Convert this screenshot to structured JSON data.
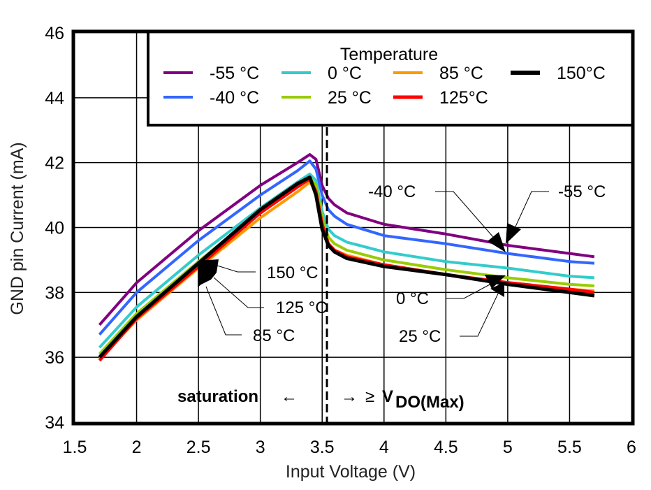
{
  "chart_data": {
    "type": "line",
    "title": "",
    "xlabel": "Input Voltage (V)",
    "ylabel": "GND pin Current (mA)",
    "xlim": [
      1.5,
      6
    ],
    "ylim": [
      34,
      46
    ],
    "xticks": [
      "1.5",
      "2",
      "2.5",
      "3",
      "3.5",
      "4",
      "4.5",
      "5",
      "5.5",
      "6"
    ],
    "yticks": [
      "34",
      "36",
      "38",
      "40",
      "42",
      "44",
      "46"
    ],
    "grid": true,
    "legend": {
      "title": "Temperature",
      "placement": "top-right",
      "entries": [
        "-55 °C",
        "0 °C",
        "85 °C",
        "150°C",
        "-40 °C",
        "25 °C",
        "125°C"
      ]
    },
    "x": [
      1.7,
      2.0,
      2.5,
      3.0,
      3.3,
      3.4,
      3.45,
      3.5,
      3.55,
      3.6,
      3.7,
      4.0,
      4.5,
      5.0,
      5.5,
      5.7
    ],
    "series": [
      {
        "name": "-55 °C",
        "color": "#800080",
        "values": [
          37.0,
          38.3,
          39.9,
          41.3,
          42.0,
          42.25,
          42.1,
          41.3,
          40.9,
          40.7,
          40.45,
          40.1,
          39.8,
          39.45,
          39.2,
          39.1
        ]
      },
      {
        "name": "-40 °C",
        "color": "#3366ff",
        "values": [
          36.7,
          38.0,
          39.6,
          41.0,
          41.75,
          42.05,
          41.8,
          41.0,
          40.55,
          40.35,
          40.1,
          39.75,
          39.5,
          39.2,
          38.95,
          38.9
        ]
      },
      {
        "name": "0 °C",
        "color": "#33cccc",
        "values": [
          36.3,
          37.55,
          39.15,
          40.6,
          41.4,
          41.65,
          41.45,
          40.5,
          39.95,
          39.75,
          39.55,
          39.25,
          38.95,
          38.75,
          38.5,
          38.45
        ]
      },
      {
        "name": "25 °C",
        "color": "#99cc00",
        "values": [
          36.1,
          37.35,
          38.95,
          40.5,
          41.3,
          41.55,
          41.3,
          40.3,
          39.7,
          39.5,
          39.3,
          39.0,
          38.7,
          38.45,
          38.25,
          38.2
        ]
      },
      {
        "name": "85 °C",
        "color": "#ff9900",
        "values": [
          35.95,
          37.15,
          38.75,
          40.3,
          41.1,
          41.4,
          41.1,
          40.1,
          39.5,
          39.3,
          39.15,
          38.85,
          38.55,
          38.3,
          38.1,
          38.05
        ]
      },
      {
        "name": "125°C",
        "color": "#ff0000",
        "values": [
          35.9,
          37.2,
          38.8,
          40.45,
          41.25,
          41.5,
          41.1,
          40.1,
          39.5,
          39.3,
          39.1,
          38.85,
          38.55,
          38.3,
          38.1,
          38.0
        ]
      },
      {
        "name": "150°C",
        "color": "#000000",
        "values": [
          36.0,
          37.25,
          38.9,
          40.55,
          41.35,
          41.55,
          41.0,
          39.95,
          39.45,
          39.25,
          39.05,
          38.8,
          38.55,
          38.25,
          38.0,
          37.9
        ]
      }
    ],
    "annotations": {
      "left_labels": [
        "150 °C",
        "125 °C",
        "85 °C"
      ],
      "right_labels": [
        "-40 °C",
        "-55 °C",
        "0 °C",
        "25 °C"
      ],
      "divider_x": 3.55,
      "saturation_label": "saturation",
      "left_arrow": "←",
      "right_arrow": "→",
      "geq": "≥",
      "vdo_main": "V",
      "vdo_sub": "DO(Max)"
    }
  }
}
